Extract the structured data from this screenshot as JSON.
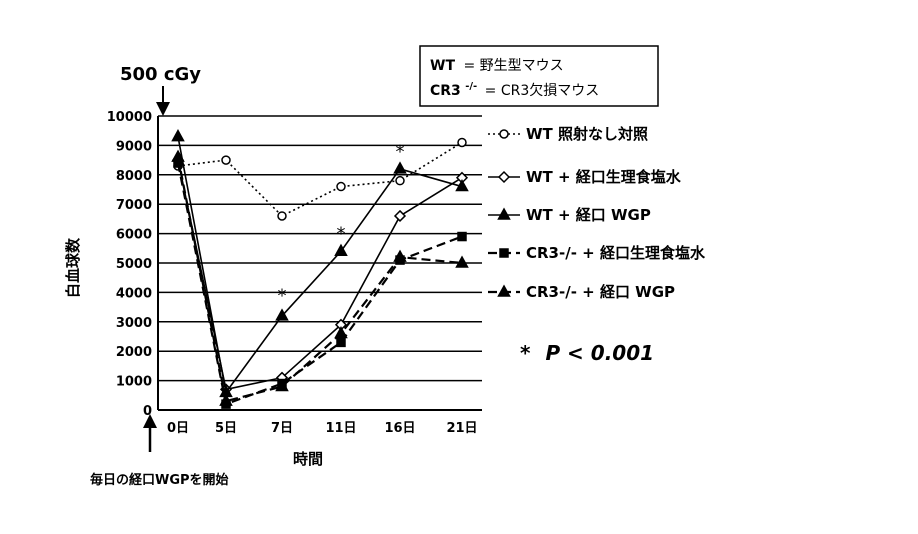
{
  "chart_data": {
    "type": "line",
    "categories": [
      "0日",
      "5日",
      "7日",
      "11日",
      "16日",
      "21日"
    ],
    "xlabel": "時間",
    "ylabel": "白血球数",
    "ylim": [
      0,
      10000
    ],
    "yticks": [
      "0",
      "1000",
      "2000",
      "3000",
      "4000",
      "5000",
      "6000",
      "7000",
      "8000",
      "9000",
      "10000"
    ],
    "grid": true,
    "legend_placement": "right",
    "series": [
      {
        "name": "WT 照射なし対照",
        "values": [
          8300,
          8500,
          6600,
          7600,
          7800,
          9100
        ],
        "marker": "circle",
        "dash": "dotted",
        "color": "#000000"
      },
      {
        "name": "WT + 経口生理食塩水",
        "values": [
          8500,
          700,
          1100,
          2900,
          6600,
          7900
        ],
        "marker": "diamond",
        "dash": "solid",
        "color": "#000000"
      },
      {
        "name": "WT + 経口 WGP",
        "values": [
          9300,
          600,
          3200,
          5400,
          8200,
          7600
        ],
        "marker": "triangle",
        "dash": "solid",
        "color": "#000000"
      },
      {
        "name": "CR3-/- + 経口生理食塩水",
        "values": [
          8400,
          200,
          900,
          2300,
          5100,
          5900
        ],
        "marker": "square",
        "dash": "dashed",
        "color": "#000000"
      },
      {
        "name": "CR3-/- + 経口 WGP",
        "values": [
          8600,
          300,
          800,
          2600,
          5200,
          5000
        ],
        "marker": "triangle",
        "dash": "dashed",
        "color": "#000000"
      }
    ],
    "significance_marks": [
      {
        "category": "7日",
        "value": 3900,
        "symbol": "*"
      },
      {
        "category": "11日",
        "value": 6000,
        "symbol": "*"
      },
      {
        "category": "16日",
        "value": 8800,
        "symbol": "*"
      }
    ],
    "annotations": {
      "dose": "500 cGy",
      "start_note": "毎日の経口WGPを開始",
      "pvalue_star": "*",
      "pvalue_text": "P < 0.001"
    },
    "definitions": {
      "wt_key": "WT",
      "wt_eq": "= 野生型マウス",
      "cr3_key": "CR3",
      "cr3_sup": "-/-",
      "cr3_eq": "= CR3欠損マウス"
    }
  }
}
